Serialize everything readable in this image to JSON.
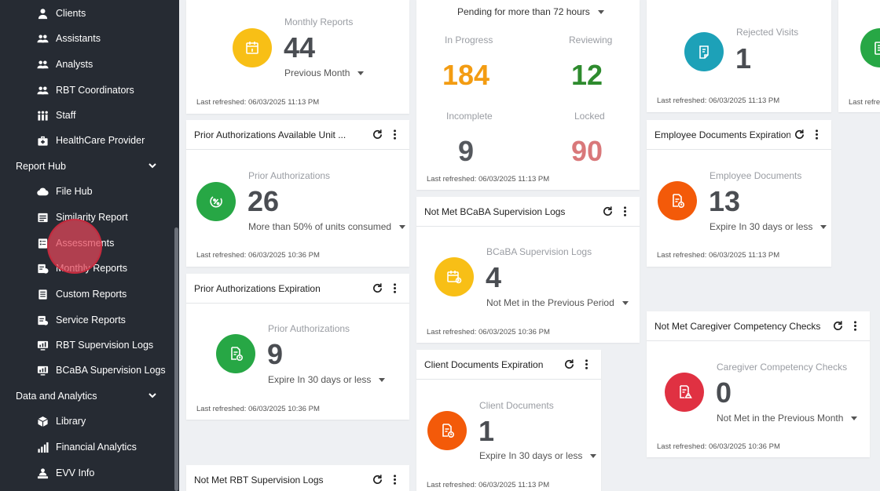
{
  "sidebar": {
    "items_top": [
      {
        "label": "Clients",
        "icon": "person-icon"
      },
      {
        "label": "Assistants",
        "icon": "people-icon"
      },
      {
        "label": "Analysts",
        "icon": "people-icon"
      },
      {
        "label": "RBT Coordinators",
        "icon": "people-icon"
      },
      {
        "label": "Staff",
        "icon": "group-icon"
      },
      {
        "label": "HealthCare Provider",
        "icon": "medkit-icon"
      }
    ],
    "report_hub": {
      "label": "Report Hub",
      "items": [
        {
          "label": "File Hub",
          "icon": "cloud-icon"
        },
        {
          "label": "Similarity Report",
          "icon": "report-icon"
        },
        {
          "label": "Assessments",
          "icon": "assessment-icon"
        },
        {
          "label": "Monthly Reports",
          "icon": "calendar-report-icon"
        },
        {
          "label": "Custom Reports",
          "icon": "document-icon"
        },
        {
          "label": "Service Reports",
          "icon": "service-report-icon"
        },
        {
          "label": "RBT Supervision Logs",
          "icon": "monitor-chart-icon"
        },
        {
          "label": "BCaBA Supervision Logs",
          "icon": "monitor-chart-icon"
        }
      ]
    },
    "data_analytics": {
      "label": "Data and Analytics",
      "items": [
        {
          "label": "Library",
          "icon": "box-icon"
        },
        {
          "label": "Financial Analytics",
          "icon": "bar-chart-icon"
        },
        {
          "label": "EVV Info",
          "icon": "person-badge-icon"
        }
      ]
    }
  },
  "cards": {
    "monthly_reports": {
      "label": "Monthly Reports",
      "value": "44",
      "period": "Previous Month",
      "refreshed": "Last refreshed: 06/03/2025 11:13 PM"
    },
    "pending": {
      "filter": "Pending for more than 72 hours",
      "in_progress_label": "In Progress",
      "in_progress_value": "184",
      "reviewing_label": "Reviewing",
      "reviewing_value": "12",
      "incomplete_label": "Incomplete",
      "incomplete_value": "9",
      "locked_label": "Locked",
      "locked_value": "90",
      "refreshed": "Last refreshed: 06/03/2025 11:13 PM",
      "colors": {
        "in_progress": "#f39c12",
        "reviewing": "#2e8b2e",
        "incomplete": "#55585d",
        "locked": "#d9787a"
      }
    },
    "rejected_visits": {
      "label": "Rejected Visits",
      "value": "1",
      "refreshed": "Last refreshed: 06/03/2025 11:13 PM"
    },
    "partial_card": {
      "refreshed": "Last refres"
    },
    "prior_auth_units": {
      "title": "Prior Authorizations Available Unit ...",
      "label": "Prior Authorizations",
      "value": "26",
      "period": "More than 50% of units consumed",
      "refreshed": "Last refreshed: 06/03/2025 10:36 PM"
    },
    "employee_docs": {
      "title": "Employee Documents Expiration",
      "label": "Employee Documents",
      "value": "13",
      "period": "Expire In 30 days or less",
      "refreshed": "Last refreshed: 06/03/2025 11:13 PM"
    },
    "bcaba_logs": {
      "title": "Not Met BCaBA Supervision Logs",
      "label": "BCaBA Supervision Logs",
      "value": "4",
      "period": "Not Met in the Previous Period",
      "refreshed": "Last refreshed: 06/03/2025 10:36 PM"
    },
    "prior_auth_exp": {
      "title": "Prior Authorizations Expiration",
      "label": "Prior Authorizations",
      "value": "9",
      "period": "Expire In 30 days or less",
      "refreshed": "Last refreshed: 06/03/2025 10:36 PM"
    },
    "caregiver": {
      "title": "Not Met Caregiver Competency Checks",
      "label": "Caregiver Competency Checks",
      "value": "0",
      "period": "Not Met in the Previous Month",
      "refreshed": "Last refreshed: 06/03/2025 10:36 PM"
    },
    "client_docs": {
      "title": "Client Documents Expiration",
      "label": "Client Documents",
      "value": "1",
      "period": "Expire In 30 days or less",
      "refreshed": "Last refreshed: 06/03/2025 11:13 PM"
    },
    "rbt_logs": {
      "title": "Not Met RBT Supervision Logs"
    }
  }
}
